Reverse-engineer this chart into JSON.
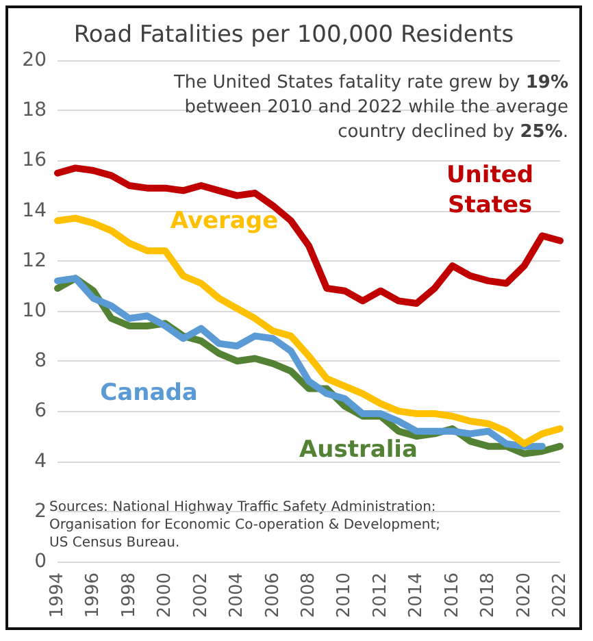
{
  "chart_data": {
    "type": "line",
    "title": "Road Fatalities per 100,000 Residents",
    "categories": [
      "1994",
      null,
      "1996",
      null,
      "1998",
      null,
      "2000",
      null,
      "2002",
      null,
      "2004",
      null,
      "2006",
      null,
      "2008",
      null,
      "2010",
      null,
      "2012",
      null,
      "2014",
      null,
      "2016",
      null,
      "2018",
      null,
      "2020",
      null,
      "2022"
    ],
    "series": [
      {
        "name": "United States",
        "color": "#c00000",
        "values": [
          15.5,
          15.7,
          15.6,
          15.4,
          15.0,
          14.9,
          14.9,
          14.8,
          15.0,
          14.8,
          14.6,
          14.7,
          14.2,
          13.6,
          12.6,
          10.9,
          10.8,
          10.4,
          10.8,
          10.4,
          10.3,
          10.9,
          11.8,
          11.4,
          11.2,
          11.1,
          11.8,
          13.0,
          12.8
        ]
      },
      {
        "name": "Average",
        "color": "#ffc000",
        "values": [
          13.6,
          13.7,
          13.5,
          13.2,
          12.7,
          12.4,
          12.4,
          11.4,
          11.1,
          10.5,
          10.1,
          9.7,
          9.2,
          9.0,
          8.2,
          7.3,
          7.0,
          6.7,
          6.3,
          6.0,
          5.9,
          5.9,
          5.8,
          5.6,
          5.5,
          5.2,
          4.7,
          5.1,
          5.3
        ]
      },
      {
        "name": "Canada",
        "color": "#5b9bd5",
        "values": [
          11.2,
          11.3,
          10.5,
          10.2,
          9.7,
          9.8,
          9.4,
          8.9,
          9.3,
          8.7,
          8.6,
          9.0,
          8.9,
          8.4,
          7.2,
          6.7,
          6.5,
          5.9,
          5.9,
          5.6,
          5.2,
          5.2,
          5.2,
          5.1,
          5.2,
          4.7,
          4.6,
          4.6,
          null
        ]
      },
      {
        "name": "Australia",
        "color": "#548235",
        "values": [
          10.9,
          11.3,
          10.8,
          9.7,
          9.4,
          9.4,
          9.5,
          9.0,
          8.8,
          8.3,
          8.0,
          8.1,
          7.9,
          7.6,
          6.9,
          6.9,
          6.2,
          5.8,
          5.8,
          5.2,
          5.0,
          5.1,
          5.3,
          4.8,
          4.6,
          4.6,
          4.3,
          4.4,
          4.6
        ]
      }
    ],
    "ylim": [
      0,
      20
    ],
    "yticks": [
      0,
      2,
      4,
      6,
      8,
      10,
      12,
      14,
      16,
      18,
      20
    ],
    "grid": "y",
    "legend": false,
    "line_style": "solid",
    "annotations": [
      "The United States fatality rate grew by 19% between 2010 and 2022 while the average country declined by 25%.",
      "Sources: National Highway Traffic Safety Administration; Organisation for Economic Co-operation & Development; US Census Bureau."
    ]
  }
}
